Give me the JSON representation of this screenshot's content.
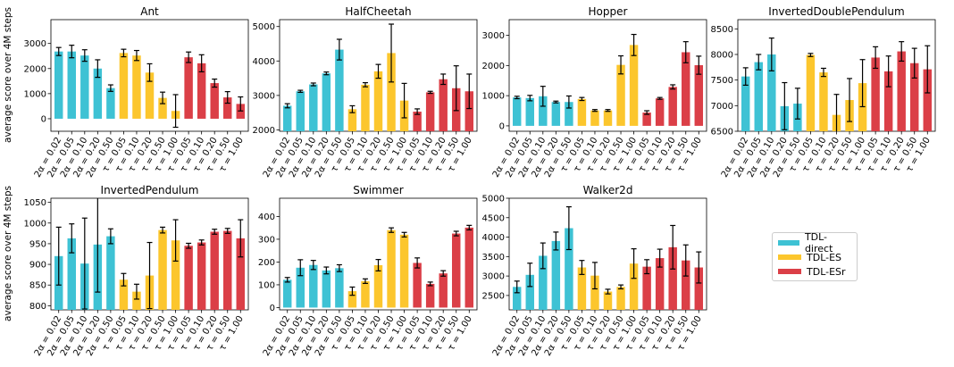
{
  "figure": {
    "ylabel": "average score over 4M steps"
  },
  "legend": [
    {
      "label": "TDL-direct",
      "color": "#3ec2d4"
    },
    {
      "label": "TDL-ES",
      "color": "#fcc62d"
    },
    {
      "label": "TDL-ESr",
      "color": "#db3f47"
    }
  ],
  "chart_data": [
    {
      "type": "bar",
      "title": "Ant",
      "categories": [
        "2α = 0.02",
        "2α = 0.05",
        "2α = 0.10",
        "2α = 0.20",
        "2α = 0.50",
        "τ = 0.05",
        "τ = 0.10",
        "τ = 0.20",
        "τ = 0.50",
        "τ = 1.00",
        "τ = 0.05",
        "τ = 0.10",
        "τ = 0.20",
        "τ = 0.50",
        "τ = 1.00"
      ],
      "groups": [
        "TDL-direct",
        "TDL-direct",
        "TDL-direct",
        "TDL-direct",
        "TDL-direct",
        "TDL-ES",
        "TDL-ES",
        "TDL-ES",
        "TDL-ES",
        "TDL-ES",
        "TDL-ESr",
        "TDL-ESr",
        "TDL-ESr",
        "TDL-ESr",
        "TDL-ESr"
      ],
      "values": [
        2680,
        2680,
        2520,
        2000,
        1220,
        2620,
        2520,
        1840,
        830,
        310,
        2450,
        2210,
        1420,
        850,
        590
      ],
      "errors": [
        160,
        250,
        230,
        350,
        130,
        150,
        200,
        350,
        230,
        650,
        210,
        340,
        160,
        230,
        280
      ],
      "ylim": [
        -500,
        3950
      ],
      "yticks": [
        0,
        1000,
        2000,
        3000
      ],
      "baseline": 0
    },
    {
      "type": "bar",
      "title": "HalfCheetah",
      "categories": [
        "2α = 0.02",
        "2α = 0.05",
        "2α = 0.10",
        "2α = 0.20",
        "2α = 0.50",
        "τ = 0.05",
        "τ = 0.10",
        "τ = 0.20",
        "τ = 0.50",
        "τ = 1.00",
        "τ = 0.05",
        "τ = 0.10",
        "τ = 0.20",
        "τ = 0.50",
        "τ = 1.00"
      ],
      "groups": [
        "TDL-direct",
        "TDL-direct",
        "TDL-direct",
        "TDL-direct",
        "TDL-direct",
        "TDL-ES",
        "TDL-ES",
        "TDL-ES",
        "TDL-ES",
        "TDL-ES",
        "TDL-ESr",
        "TDL-ESr",
        "TDL-ESr",
        "TDL-ESr",
        "TDL-ESr"
      ],
      "values": [
        2700,
        3120,
        3320,
        3640,
        4330,
        2600,
        3310,
        3700,
        4230,
        2850,
        2530,
        3090,
        3470,
        3210,
        3120
      ],
      "errors": [
        60,
        30,
        40,
        40,
        300,
        100,
        60,
        200,
        840,
        500,
        80,
        30,
        150,
        650,
        500
      ],
      "ylim": [
        1960,
        5200
      ],
      "yticks": [
        2000,
        3000,
        4000,
        5000
      ],
      "baseline": 1960
    },
    {
      "type": "bar",
      "title": "Hopper",
      "categories": [
        "2α = 0.02",
        "2α = 0.05",
        "2α = 0.10",
        "2α = 0.20",
        "2α = 0.50",
        "τ = 0.05",
        "τ = 0.10",
        "τ = 0.20",
        "τ = 0.50",
        "τ = 1.00",
        "τ = 0.05",
        "τ = 0.10",
        "τ = 0.20",
        "τ = 0.50",
        "τ = 1.00"
      ],
      "groups": [
        "TDL-direct",
        "TDL-direct",
        "TDL-direct",
        "TDL-direct",
        "TDL-direct",
        "TDL-ES",
        "TDL-ES",
        "TDL-ES",
        "TDL-ES",
        "TDL-ES",
        "TDL-ESr",
        "TDL-ESr",
        "TDL-ESr",
        "TDL-ESr",
        "TDL-ESr"
      ],
      "values": [
        940,
        920,
        980,
        790,
        790,
        890,
        510,
        510,
        2020,
        2680,
        440,
        910,
        1290,
        2440,
        2010
      ],
      "errors": [
        40,
        90,
        330,
        30,
        200,
        50,
        30,
        30,
        300,
        350,
        60,
        30,
        70,
        350,
        300
      ],
      "ylim": [
        -180,
        3520
      ],
      "yticks": [
        0,
        1000,
        2000,
        3000
      ],
      "baseline": 0
    },
    {
      "type": "bar",
      "title": "InvertedDoublePendulum",
      "categories": [
        "2α = 0.02",
        "2α = 0.05",
        "2α = 0.10",
        "2α = 0.20",
        "2α = 0.50",
        "τ = 0.05",
        "τ = 0.10",
        "τ = 0.20",
        "τ = 0.50",
        "τ = 1.00",
        "τ = 0.05",
        "τ = 0.10",
        "τ = 0.20",
        "τ = 0.50",
        "τ = 1.00"
      ],
      "groups": [
        "TDL-direct",
        "TDL-direct",
        "TDL-direct",
        "TDL-direct",
        "TDL-direct",
        "TDL-ES",
        "TDL-ES",
        "TDL-ES",
        "TDL-ES",
        "TDL-ES",
        "TDL-ESr",
        "TDL-ESr",
        "TDL-ESr",
        "TDL-ESr",
        "TDL-ESr"
      ],
      "values": [
        7570,
        7850,
        8000,
        6990,
        7040,
        7990,
        7650,
        6820,
        7110,
        7440,
        7940,
        7670,
        8060,
        7830,
        7710
      ],
      "errors": [
        170,
        150,
        320,
        460,
        300,
        30,
        80,
        400,
        420,
        460,
        210,
        300,
        190,
        290,
        460
      ],
      "ylim": [
        6500,
        8680
      ],
      "yticks": [
        6500,
        7000,
        7500,
        8000,
        8500
      ],
      "baseline": 6500
    },
    {
      "type": "bar",
      "title": "InvertedPendulum",
      "categories": [
        "2α = 0.02",
        "2α = 0.05",
        "2α = 0.10",
        "2α = 0.20",
        "2α = 0.50",
        "τ = 0.05",
        "τ = 0.10",
        "τ = 0.20",
        "τ = 0.50",
        "τ = 1.00",
        "τ = 0.05",
        "τ = 0.10",
        "τ = 0.20",
        "τ = 0.50",
        "τ = 1.00"
      ],
      "groups": [
        "TDL-direct",
        "TDL-direct",
        "TDL-direct",
        "TDL-direct",
        "TDL-direct",
        "TDL-ES",
        "TDL-ES",
        "TDL-ES",
        "TDL-ES",
        "TDL-ES",
        "TDL-ESr",
        "TDL-ESr",
        "TDL-ESr",
        "TDL-ESr",
        "TDL-ESr"
      ],
      "values": [
        920,
        963,
        902,
        948,
        968,
        863,
        834,
        873,
        983,
        958,
        945,
        953,
        979,
        981,
        963
      ],
      "errors": [
        70,
        35,
        110,
        115,
        18,
        15,
        18,
        80,
        7,
        50,
        6,
        6,
        6,
        6,
        45
      ],
      "ylim": [
        790,
        1060
      ],
      "yticks": [
        800,
        850,
        900,
        950,
        1000,
        1050
      ],
      "baseline": 790
    },
    {
      "type": "bar",
      "title": "Swimmer",
      "categories": [
        "2α = 0.02",
        "2α = 0.05",
        "2α = 0.10",
        "2α = 0.20",
        "2α = 0.50",
        "τ = 0.05",
        "τ = 0.10",
        "τ = 0.20",
        "τ = 0.50",
        "τ = 1.00",
        "τ = 0.05",
        "τ = 0.10",
        "τ = 0.20",
        "τ = 0.50",
        "τ = 1.00"
      ],
      "groups": [
        "TDL-direct",
        "TDL-direct",
        "TDL-direct",
        "TDL-direct",
        "TDL-direct",
        "TDL-ES",
        "TDL-ES",
        "TDL-ES",
        "TDL-ES",
        "TDL-ES",
        "TDL-ESr",
        "TDL-ESr",
        "TDL-ESr",
        "TDL-ESr",
        "TDL-ESr"
      ],
      "values": [
        122,
        175,
        187,
        163,
        173,
        72,
        116,
        186,
        340,
        320,
        196,
        104,
        150,
        325,
        351
      ],
      "errors": [
        10,
        35,
        20,
        15,
        15,
        18,
        10,
        25,
        10,
        10,
        22,
        8,
        12,
        10,
        10
      ],
      "ylim": [
        -10,
        480
      ],
      "yticks": [
        0,
        100,
        200,
        300,
        400
      ],
      "baseline": 0
    },
    {
      "type": "bar",
      "title": "Walker2d",
      "categories": [
        "2α = 0.02",
        "2α = 0.05",
        "2α = 0.10",
        "2α = 0.20",
        "2α = 0.50",
        "τ = 0.05",
        "τ = 0.10",
        "τ = 0.20",
        "τ = 0.50",
        "τ = 1.00",
        "τ = 0.05",
        "τ = 0.10",
        "τ = 0.20",
        "τ = 0.50",
        "τ = 1.00"
      ],
      "groups": [
        "TDL-direct",
        "TDL-direct",
        "TDL-direct",
        "TDL-direct",
        "TDL-direct",
        "TDL-ES",
        "TDL-ES",
        "TDL-ES",
        "TDL-ES",
        "TDL-ES",
        "TDL-ESr",
        "TDL-ESr",
        "TDL-ESr",
        "TDL-ESr",
        "TDL-ESr"
      ],
      "values": [
        2720,
        3030,
        3520,
        3900,
        4230,
        3220,
        3010,
        2600,
        2720,
        3320,
        3240,
        3460,
        3740,
        3400,
        3220
      ],
      "errors": [
        150,
        300,
        330,
        230,
        550,
        180,
        340,
        60,
        50,
        380,
        180,
        230,
        560,
        400,
        400
      ],
      "ylim": [
        2130,
        5000
      ],
      "yticks": [
        2500,
        3000,
        3500,
        4000,
        4500,
        5000
      ],
      "baseline": 2130
    }
  ]
}
